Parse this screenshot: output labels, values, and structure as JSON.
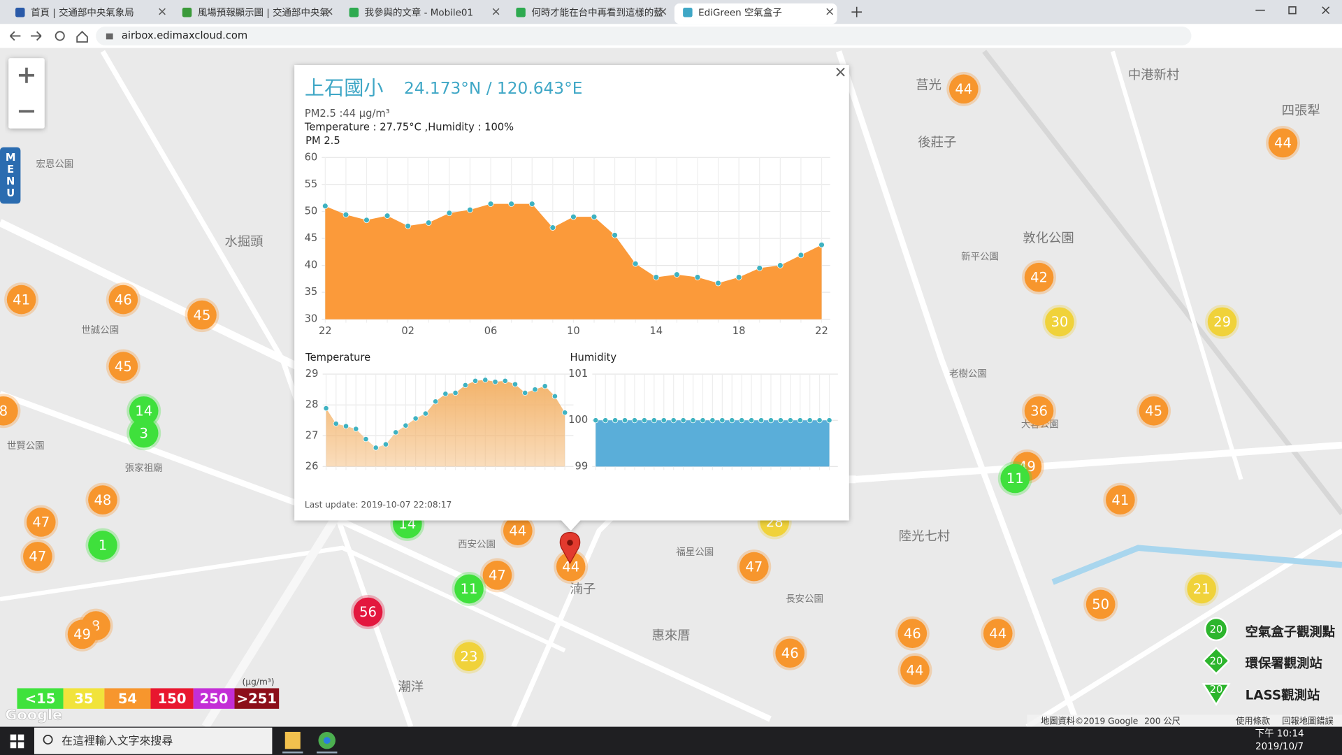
{
  "browser": {
    "tabs": [
      "首頁 | 交通部中央氣象局",
      "風場預報顯示圖 | 交通部中央氣",
      "我參與的文章 - Mobile01",
      "何時才能在台中再看到這樣的藍",
      "EdiGreen 空氣盒子"
    ],
    "url": "airbox.edimaxcloud.com"
  },
  "map": {
    "menu": "MENU",
    "places": [
      "水掘頭",
      "後莊子",
      "莒光",
      "中港新村",
      "四張犁",
      "敦化公園",
      "陸光七村",
      "惠來厝",
      "潮洋",
      "湳子",
      "西安公園",
      "福星公園",
      "長安公園",
      "世賢公園",
      "世誠公園",
      "張家祖廟",
      "老樹公園",
      "新平公園",
      "宏恩公園",
      "大容公園"
    ],
    "markers": [
      {
        "value": 44,
        "color": "#f7962d"
      },
      {
        "value": 44,
        "color": "#f7962d"
      },
      {
        "value": 41,
        "color": "#f7962d"
      },
      {
        "value": 46,
        "color": "#f7962d"
      },
      {
        "value": 45,
        "color": "#f7962d"
      },
      {
        "value": 42,
        "color": "#f7962d"
      },
      {
        "value": 30,
        "color": "#f0d23a"
      },
      {
        "value": 29,
        "color": "#f0d23a"
      },
      {
        "value": 45,
        "color": "#f7962d"
      },
      {
        "value": 14,
        "color": "#3fe03c"
      },
      {
        "value": 3,
        "color": "#3fe03c"
      },
      {
        "value": 36,
        "color": "#f7962d"
      },
      {
        "value": 45,
        "color": "#f7962d"
      },
      {
        "value": 8,
        "color": "#f7962d"
      },
      {
        "value": 49,
        "color": "#f7962d"
      },
      {
        "value": 11,
        "color": "#3fe03c"
      },
      {
        "value": 48,
        "color": "#f7962d"
      },
      {
        "value": 47,
        "color": "#f7962d"
      },
      {
        "value": 41,
        "color": "#f7962d"
      },
      {
        "value": 1,
        "color": "#3fe03c"
      },
      {
        "value": 47,
        "color": "#f7962d"
      },
      {
        "value": 44,
        "color": "#f7962d"
      },
      {
        "value": 47,
        "color": "#f7962d"
      },
      {
        "value": 11,
        "color": "#3fe03c"
      },
      {
        "value": 44,
        "color": "#f7962d"
      },
      {
        "value": 47,
        "color": "#f7962d"
      },
      {
        "value": 56,
        "color": "#e3173e"
      },
      {
        "value": 21,
        "color": "#f0d23a"
      },
      {
        "value": 50,
        "color": "#f7962d"
      },
      {
        "value": 46,
        "color": "#f7962d"
      },
      {
        "value": 44,
        "color": "#f7962d"
      },
      {
        "value": 8,
        "color": "#f7962d"
      },
      {
        "value": 49,
        "color": "#f7962d"
      },
      {
        "value": 23,
        "color": "#f0d23a"
      },
      {
        "value": 46,
        "color": "#f7962d"
      },
      {
        "value": 44,
        "color": "#f7962d"
      },
      {
        "value": 14,
        "color": "#3fe03c"
      },
      {
        "value": 28,
        "color": "#f0d23a"
      }
    ],
    "legend": {
      "unit": "(μg/m³)",
      "items": [
        {
          "label": "<15",
          "color": "#3fe23c"
        },
        {
          "label": "35",
          "color": "#f1e33b"
        },
        {
          "label": "54",
          "color": "#f7962d"
        },
        {
          "label": "150",
          "color": "#e8172f"
        },
        {
          "label": "250",
          "color": "#c32ed6"
        },
        {
          "label": ">251",
          "color": "#8c0f1a"
        }
      ]
    },
    "station_types": [
      {
        "label": "空氣盒子觀測點",
        "icon": 20
      },
      {
        "label": "環保署觀測站",
        "icon": 20
      },
      {
        "label": "LASS觀測站",
        "icon": 20
      }
    ],
    "footer": [
      "地圖資料©2019 Google",
      "200 公尺",
      "使用條款",
      "回報地圖錯誤"
    ],
    "google": "Google"
  },
  "popup": {
    "close": "×",
    "name": "上石國小",
    "coords": "24.173°N / 120.643°E",
    "pm": "PM2.5 :44 µg/m³",
    "env": "Temperature : 27.75°C ,Humidity : 100%",
    "updated": "Last update: 2019-10-07 22:08:17"
  },
  "chart_data": [
    {
      "type": "area",
      "title": "PM 2.5",
      "color": "#fb9a3a",
      "point_color": "#3fb2c1",
      "categories": [
        "22",
        null,
        null,
        null,
        "02",
        null,
        null,
        null,
        "06",
        null,
        null,
        null,
        "10",
        null,
        null,
        null,
        "14",
        null,
        null,
        null,
        "18",
        null,
        null,
        null,
        "22"
      ],
      "values": [
        51,
        49.4,
        48.4,
        49.2,
        47.3,
        47.9,
        49.7,
        50.3,
        51.4,
        51.4,
        51.4,
        47,
        49,
        49,
        45.6,
        40.3,
        37.8,
        38.3,
        37.8,
        36.7,
        37.8,
        39.5,
        40,
        41.9,
        43.8
      ],
      "ylim": [
        30,
        60
      ],
      "yticks": [
        30,
        35,
        40,
        45,
        50,
        55,
        60
      ],
      "grid": true
    },
    {
      "type": "area",
      "title": "Temperature",
      "color": "#f3b36a",
      "point_color": "#3fb2c1",
      "values": [
        27.89,
        27.39,
        27.31,
        27.22,
        26.89,
        26.61,
        26.72,
        27.11,
        27.33,
        27.56,
        27.72,
        28.11,
        28.36,
        28.39,
        28.64,
        28.78,
        28.81,
        28.75,
        28.78,
        28.67,
        28.39,
        28.5,
        28.61,
        28.28,
        27.75
      ],
      "ylim": [
        26,
        29
      ],
      "yticks": [
        26,
        27,
        28,
        29
      ],
      "grid": true
    },
    {
      "type": "area",
      "title": "Humidity",
      "color": "#5aaed9",
      "point_color": "#3fb2c1",
      "values": [
        100,
        100,
        100,
        100,
        100,
        100,
        100,
        100,
        100,
        100,
        100,
        100,
        100,
        100,
        100,
        100,
        100,
        100,
        100,
        100,
        100,
        100,
        100,
        100,
        100
      ],
      "ylim": [
        99,
        101
      ],
      "yticks": [
        99,
        100,
        101
      ],
      "grid": true
    }
  ],
  "taskbar": {
    "search": "在這裡輸入文字來搜尋",
    "time": "下午 10:14",
    "date": "2019/10/7"
  }
}
